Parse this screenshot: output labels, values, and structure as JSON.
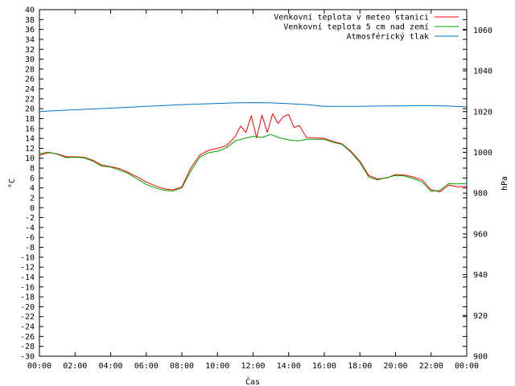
{
  "chart_data": {
    "type": "line",
    "xlabel": "Čas",
    "ylabel": "°C",
    "y2label": "hPa",
    "xlim": [
      0,
      24
    ],
    "ylim": [
      -30,
      40
    ],
    "y2lim": [
      900,
      1070
    ],
    "x_ticks": [
      "00:00",
      "02:00",
      "04:00",
      "06:00",
      "08:00",
      "10:00",
      "12:00",
      "14:00",
      "16:00",
      "18:00",
      "20:00",
      "22:00",
      "00:00"
    ],
    "y_ticks": [
      "40",
      "38",
      "36",
      "34",
      "32",
      "30",
      "28",
      "26",
      "24",
      "22",
      "20",
      "18",
      "16",
      "14",
      "12",
      "10",
      "8",
      "6",
      "4",
      "2",
      "0",
      "-2",
      "-4",
      "-6",
      "-8",
      "-10",
      "-12",
      "-14",
      "-16",
      "-18",
      "-20",
      "-22",
      "-24",
      "-26",
      "-28",
      "-30"
    ],
    "y2_ticks": [
      "1060",
      "1040",
      "1020",
      "1000",
      "980",
      "960",
      "940",
      "920",
      "900"
    ],
    "legend_position": "top-right",
    "grid": false,
    "series": [
      {
        "name": "Venkovní teplota v meteo stanici",
        "color": "#ff0000",
        "axis": "left",
        "x": [
          0,
          0.5,
          1,
          1.5,
          2,
          2.5,
          3,
          3.5,
          4,
          4.5,
          5,
          5.5,
          6,
          6.5,
          7,
          7.5,
          8,
          8.5,
          9,
          9.5,
          10,
          10.5,
          11,
          11.3,
          11.6,
          11.9,
          12.2,
          12.5,
          12.8,
          13.1,
          13.4,
          13.7,
          14,
          14.3,
          14.6,
          15,
          15.5,
          16,
          16.5,
          17,
          17.5,
          18,
          18.5,
          19,
          19.5,
          20,
          20.5,
          21,
          21.5,
          22,
          22.5,
          23,
          23.5,
          24
        ],
        "values": [
          10.6,
          11.1,
          10.9,
          10.3,
          10.3,
          10.2,
          9.6,
          8.6,
          8.3,
          7.9,
          7.1,
          6.2,
          5.2,
          4.4,
          3.8,
          3.6,
          4.2,
          8.0,
          10.6,
          11.6,
          12.0,
          12.5,
          14.4,
          16.5,
          15.2,
          18.6,
          14.1,
          18.7,
          15.2,
          19.0,
          17.0,
          18.4,
          18.8,
          16.2,
          16.6,
          14.2,
          14.1,
          14.0,
          13.4,
          12.9,
          11.4,
          9.4,
          6.5,
          5.8,
          6.0,
          6.7,
          6.6,
          6.2,
          5.6,
          3.6,
          3.2,
          4.6,
          4.2,
          4.3
        ]
      },
      {
        "name": "Venkovní teplota 5 cm nad zemí",
        "color": "#00a000",
        "axis": "left",
        "x": [
          0,
          0.5,
          1,
          1.5,
          2,
          2.5,
          3,
          3.5,
          4,
          4.5,
          5,
          5.5,
          6,
          6.5,
          7,
          7.5,
          8,
          8.5,
          9,
          9.5,
          10,
          10.5,
          11,
          11.5,
          12,
          12.5,
          13,
          13.5,
          14,
          14.5,
          15,
          15.5,
          16,
          16.5,
          17,
          17.5,
          18,
          18.5,
          19,
          19.5,
          20,
          20.5,
          21,
          21.5,
          22,
          22.5,
          23,
          23.5,
          24
        ],
        "values": [
          10.9,
          11.2,
          10.8,
          10.1,
          10.2,
          10.1,
          9.4,
          8.4,
          8.2,
          7.6,
          6.9,
          5.8,
          4.7,
          4.0,
          3.5,
          3.4,
          4.0,
          7.4,
          10.2,
          11.1,
          11.4,
          12.1,
          13.5,
          14.0,
          14.4,
          14.2,
          14.8,
          14.1,
          13.7,
          13.5,
          13.8,
          13.8,
          13.8,
          13.2,
          12.8,
          11.2,
          9.1,
          6.2,
          5.6,
          6.1,
          6.5,
          6.4,
          5.9,
          5.2,
          3.3,
          3.5,
          4.9,
          4.8,
          4.9
        ]
      },
      {
        "name": "Atmosférický tlak",
        "color": "#0070c0",
        "axis": "right",
        "x": [
          0,
          1,
          2,
          3,
          4,
          5,
          6,
          7,
          8,
          9,
          10,
          11,
          12,
          13,
          14,
          15,
          16,
          17,
          18,
          19,
          20,
          21,
          22,
          23,
          24
        ],
        "values": [
          1020.0,
          1020.5,
          1020.9,
          1021.3,
          1021.7,
          1022.1,
          1022.6,
          1023.0,
          1023.4,
          1023.7,
          1024.0,
          1024.3,
          1024.4,
          1024.3,
          1023.9,
          1023.4,
          1022.6,
          1022.6,
          1022.6,
          1022.7,
          1022.8,
          1022.9,
          1022.9,
          1022.7,
          1022.3
        ]
      }
    ]
  }
}
